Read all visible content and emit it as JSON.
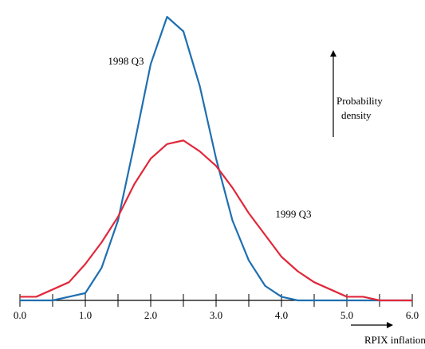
{
  "chart_data": {
    "type": "line",
    "x": [
      0,
      0.25,
      0.5,
      0.75,
      1,
      1.25,
      1.5,
      1.75,
      2,
      2.25,
      2.5,
      2.75,
      3,
      3.25,
      3.5,
      3.75,
      4,
      4.25,
      4.5,
      4.75,
      5,
      5.25,
      5.5,
      5.75,
      6
    ],
    "series": [
      {
        "name": "1998 Q3",
        "color": "#1f6fb0",
        "values": [
          0,
          0,
          0,
          0.01,
          0.02,
          0.09,
          0.22,
          0.43,
          0.65,
          0.78,
          0.74,
          0.59,
          0.39,
          0.22,
          0.11,
          0.04,
          0.01,
          0,
          0,
          0,
          0,
          0,
          0,
          0,
          0
        ]
      },
      {
        "name": "1999 Q3",
        "color": "#e0283a",
        "values": [
          0.01,
          0.01,
          0.03,
          0.05,
          0.1,
          0.16,
          0.23,
          0.32,
          0.39,
          0.43,
          0.44,
          0.41,
          0.37,
          0.31,
          0.24,
          0.18,
          0.12,
          0.08,
          0.05,
          0.03,
          0.01,
          0.01,
          0,
          0,
          0
        ]
      }
    ],
    "xlim": [
      0,
      6
    ],
    "xticks": [
      {
        "value": 0,
        "label": "0.0"
      },
      {
        "value": 1,
        "label": "1.0"
      },
      {
        "value": 2,
        "label": "2.0"
      },
      {
        "value": 3,
        "label": "3.0"
      },
      {
        "value": 4,
        "label": "4.0"
      },
      {
        "value": 5,
        "label": "5.0"
      },
      {
        "value": 6,
        "label": "6.0"
      }
    ],
    "xminorticks": [
      0.5,
      1.5,
      2.5,
      3.5,
      4.5,
      5.5
    ],
    "ylim": [
      0,
      0.8
    ],
    "x_label": "RPIX inflation",
    "y_label": [
      "Probability",
      "density"
    ]
  }
}
